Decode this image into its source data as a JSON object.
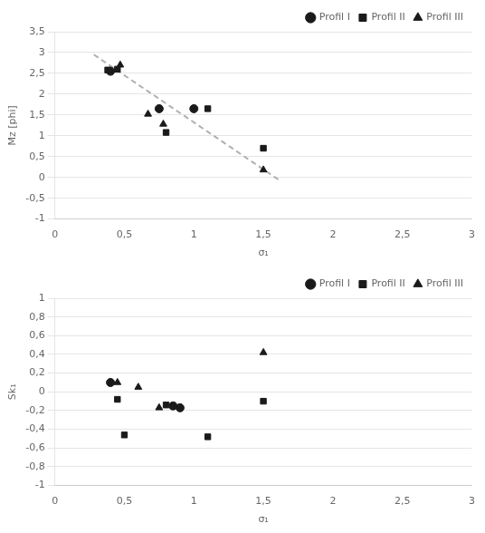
{
  "chart_data": [
    {
      "type": "scatter",
      "xlabel": "σ₁",
      "ylabel": "Mz [phi]",
      "xlim": [
        0,
        3
      ],
      "ylim": [
        -1,
        3.5
      ],
      "xticks": [
        0,
        {
          "value": 0.5,
          "label": "0,5"
        },
        1,
        {
          "value": 1.5,
          "label": "1,5"
        },
        2,
        {
          "value": 2.5,
          "label": "2,5"
        },
        3
      ],
      "yticks": [
        -1,
        {
          "value": -0.5,
          "label": "-0,5"
        },
        0,
        {
          "value": 0.5,
          "label": "0,5"
        },
        1,
        {
          "value": 1.5,
          "label": "1,5"
        },
        2,
        {
          "value": 2.5,
          "label": "2,5"
        },
        3,
        {
          "value": 3.5,
          "label": "3,5"
        }
      ],
      "grid": "y",
      "legend": "upper right",
      "series": [
        {
          "type": "line",
          "color": "#b0b0b0",
          "line_style": "dashed",
          "x": [
            0.28,
            1.62
          ],
          "values": [
            2.95,
            -0.08
          ]
        },
        {
          "name": "Profil I",
          "color": "#1a1a1a",
          "marker": "circle",
          "x": [
            0.4,
            0.75,
            1.0
          ],
          "values": [
            2.55,
            1.65,
            1.65
          ]
        },
        {
          "name": "Profil II",
          "color": "#1a1a1a",
          "marker": "square",
          "x": [
            0.38,
            0.45,
            0.8,
            1.1,
            1.5
          ],
          "values": [
            2.58,
            2.6,
            1.08,
            1.65,
            0.7
          ]
        },
        {
          "name": "Profil III",
          "color": "#1a1a1a",
          "marker": "triangle",
          "x": [
            0.47,
            0.67,
            0.78,
            1.5
          ],
          "values": [
            2.7,
            1.52,
            1.28,
            0.18
          ]
        }
      ]
    },
    {
      "type": "scatter",
      "xlabel": "σ₁",
      "ylabel": "Sk₁",
      "xlim": [
        0,
        3
      ],
      "ylim": [
        -1.0,
        1.0
      ],
      "xticks": [
        0,
        {
          "value": 0.5,
          "label": "0,5"
        },
        1,
        {
          "value": 1.5,
          "label": "1,5"
        },
        2,
        {
          "value": 2.5,
          "label": "2,5"
        },
        3
      ],
      "yticks": [
        -1.0,
        {
          "value": -0.8,
          "label": "-0,8"
        },
        {
          "value": -0.6,
          "label": "-0,6"
        },
        {
          "value": -0.4,
          "label": "-0,4"
        },
        {
          "value": -0.2,
          "label": "-0,2"
        },
        0,
        {
          "value": 0.2,
          "label": "0,2"
        },
        {
          "value": 0.4,
          "label": "0,4"
        },
        {
          "value": 0.6,
          "label": "0,6"
        },
        {
          "value": 0.8,
          "label": "0,8"
        },
        1.0
      ],
      "grid": "y",
      "legend": "upper right",
      "series": [
        {
          "name": "Profil I",
          "color": "#1a1a1a",
          "marker": "circle",
          "x": [
            0.4,
            0.85,
            0.9
          ],
          "values": [
            0.1,
            -0.15,
            -0.17
          ]
        },
        {
          "name": "Profil II",
          "color": "#1a1a1a",
          "marker": "square",
          "x": [
            0.45,
            0.5,
            0.8,
            1.1,
            1.5
          ],
          "values": [
            -0.08,
            -0.46,
            -0.14,
            -0.48,
            -0.1
          ]
        },
        {
          "name": "Profil III",
          "color": "#1a1a1a",
          "marker": "triangle",
          "x": [
            0.45,
            0.6,
            0.75,
            1.5
          ],
          "values": [
            0.1,
            0.05,
            -0.17,
            0.42
          ]
        }
      ]
    }
  ]
}
